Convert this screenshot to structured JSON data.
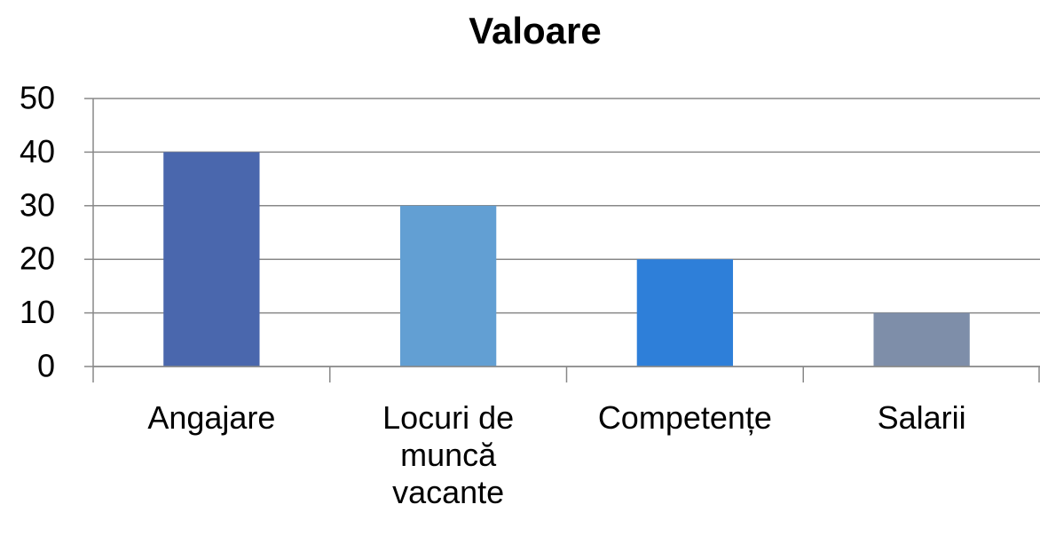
{
  "chart_data": {
    "type": "bar",
    "title": "Valoare",
    "categories": [
      "Angajare",
      "Locuri de muncă vacante",
      "Competențe",
      "Salarii"
    ],
    "values": [
      40,
      30,
      20,
      10
    ],
    "colors": [
      "#4a67ad",
      "#629fd3",
      "#2e7fd9",
      "#7e8ea9"
    ],
    "ylim": [
      0,
      50
    ],
    "yticks": [
      0,
      10,
      20,
      30,
      40,
      50
    ],
    "grid": true
  }
}
